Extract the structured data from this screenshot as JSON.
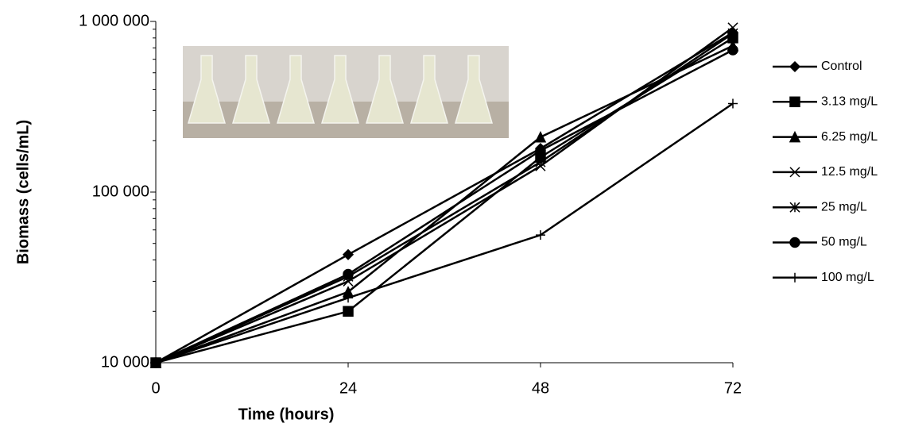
{
  "chart_data": {
    "type": "line",
    "x_label": "Time (hours)",
    "y_label": "Biomass (cells/mL)",
    "x": [
      0,
      24,
      48,
      72
    ],
    "xlim": [
      0,
      72
    ],
    "xticks": [
      0,
      24,
      48,
      72
    ],
    "ylim": [
      10000,
      1000000
    ],
    "yticks": [
      {
        "value": 10000,
        "label": "10 000"
      },
      {
        "value": 100000,
        "label": "100 000"
      },
      {
        "value": 1000000,
        "label": "1 000 000"
      }
    ],
    "log_y": true,
    "minor_ticks": true,
    "legend": "right",
    "series": [
      {
        "name": "Control",
        "color": "#000000",
        "marker": "diamond",
        "values": [
          10000,
          43000,
          180000,
          860000
        ]
      },
      {
        "name": "3.13 mg/L",
        "color": "#000000",
        "marker": "square",
        "values": [
          10000,
          20000,
          160000,
          800000
        ]
      },
      {
        "name": "6.25 mg/L",
        "color": "#000000",
        "marker": "triangle",
        "values": [
          10000,
          26000,
          210000,
          720000
        ]
      },
      {
        "name": "12.5 mg/L",
        "color": "#000000",
        "marker": "x",
        "values": [
          10000,
          30000,
          142000,
          920000
        ]
      },
      {
        "name": "25 mg/L",
        "color": "#000000",
        "marker": "star",
        "values": [
          10000,
          32000,
          150000,
          850000
        ]
      },
      {
        "name": "50 mg/L",
        "color": "#000000",
        "marker": "circle",
        "values": [
          10000,
          33000,
          175000,
          680000
        ]
      },
      {
        "name": "100 mg/L",
        "color": "#000000",
        "marker": "plus",
        "values": [
          10000,
          24000,
          56000,
          330000
        ]
      }
    ]
  }
}
